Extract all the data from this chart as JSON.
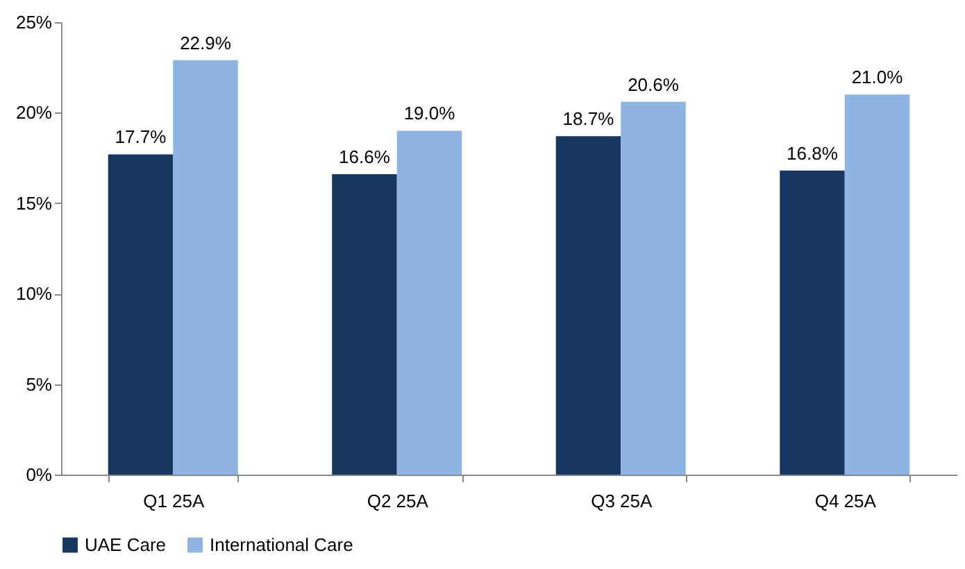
{
  "chart_data": {
    "type": "bar",
    "categories": [
      "Q1 25A",
      "Q2 25A",
      "Q3 25A",
      "Q4 25A"
    ],
    "series": [
      {
        "name": "UAE Care",
        "color": "#17375e",
        "values": [
          17.7,
          16.6,
          18.7,
          16.8
        ],
        "value_labels": [
          "17.7%",
          "16.6%",
          "18.7%",
          "16.8%"
        ]
      },
      {
        "name": "International Care",
        "color": "#8db4e2",
        "values": [
          22.9,
          19.0,
          20.6,
          21.0
        ],
        "value_labels": [
          "22.9%",
          "19.0%",
          "20.6%",
          "21.0%"
        ]
      }
    ],
    "ylim": [
      0,
      25
    ],
    "yticks": [
      {
        "value": 0,
        "label": "0%"
      },
      {
        "value": 5,
        "label": "5%"
      },
      {
        "value": 10,
        "label": "10%"
      },
      {
        "value": 15,
        "label": "15%"
      },
      {
        "value": 20,
        "label": "20%"
      },
      {
        "value": 25,
        "label": "25%"
      }
    ],
    "legend": "bottom"
  }
}
